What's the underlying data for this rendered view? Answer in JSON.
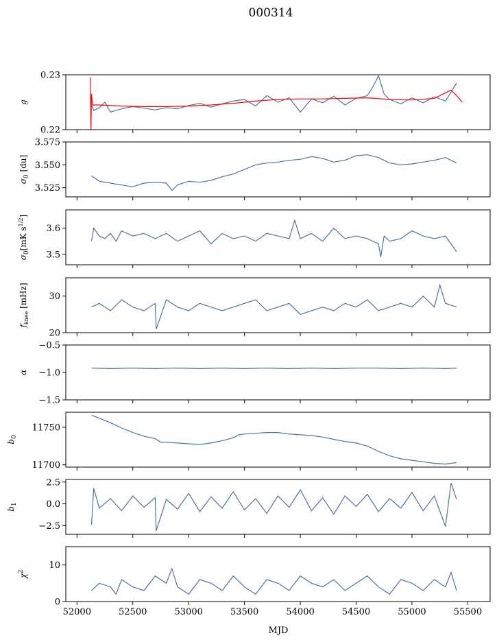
{
  "title": "000314",
  "colors": {
    "series": "#4c72a0",
    "overlay": "#ff0000",
    "axes": "#000000"
  },
  "chart_data": {
    "type": "line",
    "shared_x": {
      "label": "MJD",
      "lim": [
        51900,
        55700
      ],
      "ticks": [
        52000,
        52500,
        53000,
        53500,
        54000,
        54500,
        55000,
        55500
      ],
      "tick_labels": [
        "52000",
        "52500",
        "53000",
        "53500",
        "54000",
        "54500",
        "55000",
        "55500"
      ]
    },
    "panels": [
      {
        "ylabel": "g",
        "ylim": [
          0.22,
          0.23
        ],
        "yticks": [
          0.22,
          0.23
        ],
        "ytick_labels": [
          "0.22",
          "0.23"
        ],
        "series": [
          {
            "color": "#4c72a0",
            "x": [
              52130,
              52150,
              52200,
              52250,
              52300,
              52400,
              52500,
              52600,
              52700,
              52800,
              52900,
              53000,
              53100,
              53200,
              53300,
              53400,
              53500,
              53600,
              53700,
              53800,
              53900,
              54000,
              54100,
              54200,
              54300,
              54400,
              54500,
              54600,
              54650,
              54700,
              54750,
              54800,
              54900,
              55000,
              55100,
              55200,
              55300,
              55400
            ],
            "y": [
              0.2245,
              0.2235,
              0.224,
              0.225,
              0.2232,
              0.2238,
              0.2242,
              0.2239,
              0.2236,
              0.224,
              0.2238,
              0.2244,
              0.2248,
              0.2241,
              0.2247,
              0.2252,
              0.2255,
              0.2243,
              0.2262,
              0.225,
              0.2258,
              0.2232,
              0.2256,
              0.2249,
              0.2261,
              0.2245,
              0.2257,
              0.2262,
              0.2278,
              0.2298,
              0.2265,
              0.2255,
              0.2247,
              0.2258,
              0.2249,
              0.226,
              0.2252,
              0.2285
            ]
          },
          {
            "color": "#ff0000",
            "x": [
              52120,
              52125,
              52130,
              52140,
              52200,
              52400,
              52600,
              52800,
              53000,
              53200,
              53400,
              53600,
              53800,
              54000,
              54200,
              54400,
              54600,
              54800,
              55000,
              55200,
              55350,
              55400,
              55450
            ],
            "y": [
              0.2295,
              0.22,
              0.2265,
              0.2245,
              0.2245,
              0.2243,
              0.2242,
              0.2242,
              0.2243,
              0.2245,
              0.2248,
              0.2252,
              0.2255,
              0.2256,
              0.2256,
              0.2257,
              0.2258,
              0.2255,
              0.2254,
              0.2257,
              0.2272,
              0.2262,
              0.225
            ]
          }
        ]
      },
      {
        "ylabel": "σ0 [du]",
        "ylim": [
          3.515,
          3.575
        ],
        "yticks": [
          3.525,
          3.55,
          3.575
        ],
        "ytick_labels": [
          "3.525",
          "3.550",
          "3.575"
        ],
        "series": [
          {
            "color": "#4c72a0",
            "x": [
              52130,
              52200,
              52300,
              52400,
              52500,
              52600,
              52700,
              52800,
              52850,
              52900,
              53000,
              53100,
              53200,
              53300,
              53400,
              53500,
              53600,
              53700,
              53800,
              53900,
              54000,
              54100,
              54200,
              54300,
              54400,
              54500,
              54600,
              54700,
              54800,
              54900,
              55000,
              55100,
              55200,
              55300,
              55400
            ],
            "y": [
              3.538,
              3.532,
              3.53,
              3.528,
              3.526,
              3.53,
              3.531,
              3.53,
              3.522,
              3.528,
              3.532,
              3.531,
              3.533,
              3.537,
              3.54,
              3.545,
              3.55,
              3.552,
              3.553,
              3.555,
              3.556,
              3.559,
              3.557,
              3.553,
              3.555,
              3.56,
              3.561,
              3.558,
              3.552,
              3.55,
              3.551,
              3.553,
              3.555,
              3.558,
              3.552
            ]
          }
        ]
      },
      {
        "ylabel": "σ0[mK s^1/2]",
        "ylim": [
          3.46,
          3.67
        ],
        "yticks": [
          3.5,
          3.6
        ],
        "ytick_labels": [
          "3.5",
          "3.6"
        ],
        "series": [
          {
            "color": "#4c72a0",
            "x": [
              52130,
              52150,
              52200,
              52250,
              52300,
              52350,
              52400,
              52500,
              52600,
              52700,
              52800,
              52900,
              53000,
              53100,
              53200,
              53300,
              53400,
              53500,
              53600,
              53700,
              53800,
              53900,
              53950,
              54000,
              54100,
              54200,
              54300,
              54400,
              54500,
              54600,
              54700,
              54720,
              54750,
              54800,
              54900,
              55000,
              55100,
              55200,
              55300,
              55400
            ],
            "y": [
              3.55,
              3.6,
              3.57,
              3.56,
              3.58,
              3.55,
              3.59,
              3.57,
              3.58,
              3.56,
              3.58,
              3.55,
              3.57,
              3.59,
              3.54,
              3.58,
              3.56,
              3.57,
              3.55,
              3.58,
              3.57,
              3.56,
              3.63,
              3.56,
              3.58,
              3.55,
              3.6,
              3.56,
              3.57,
              3.56,
              3.54,
              3.49,
              3.57,
              3.55,
              3.56,
              3.59,
              3.57,
              3.56,
              3.57,
              3.51
            ]
          }
        ]
      },
      {
        "ylabel": "f_knee [mHz]",
        "ylim": [
          20,
          35
        ],
        "yticks": [
          20,
          30
        ],
        "ytick_labels": [
          "20",
          "30"
        ],
        "series": [
          {
            "color": "#4c72a0",
            "x": [
              52130,
              52200,
              52300,
              52400,
              52500,
              52600,
              52700,
              52710,
              52800,
              52900,
              53000,
              53100,
              53200,
              53300,
              53400,
              53500,
              53600,
              53700,
              53800,
              53900,
              54000,
              54100,
              54200,
              54300,
              54400,
              54500,
              54600,
              54700,
              54800,
              54900,
              55000,
              55100,
              55200,
              55250,
              55300,
              55400
            ],
            "y": [
              27,
              28,
              26,
              29,
              27,
              26,
              28,
              21,
              29,
              27,
              26,
              28,
              27,
              26,
              27,
              28,
              29,
              26,
              27,
              28,
              25,
              26,
              27,
              26,
              28,
              27,
              29,
              26,
              27,
              28,
              27,
              30,
              27,
              33,
              28,
              27
            ]
          }
        ]
      },
      {
        "ylabel": "α",
        "ylim": [
          -1.5,
          -0.5
        ],
        "yticks": [
          -1.5,
          -1.0,
          -0.5
        ],
        "ytick_labels": [
          "−1.5",
          "−1.0",
          "−0.5"
        ],
        "series": [
          {
            "color": "#4c72a0",
            "x": [
              52130,
              52300,
              52500,
              52700,
              52900,
              53100,
              53300,
              53500,
              53700,
              53900,
              54100,
              54300,
              54500,
              54700,
              54900,
              55100,
              55300,
              55400
            ],
            "y": [
              -0.92,
              -0.93,
              -0.92,
              -0.93,
              -0.92,
              -0.93,
              -0.92,
              -0.93,
              -0.92,
              -0.93,
              -0.92,
              -0.93,
              -0.92,
              -0.92,
              -0.93,
              -0.92,
              -0.93,
              -0.92
            ]
          }
        ]
      },
      {
        "ylabel": "b0",
        "ylim": [
          11697,
          11770
        ],
        "yticks": [
          11700,
          11750
        ],
        "ytick_labels": [
          "11700",
          "11750"
        ],
        "series": [
          {
            "color": "#4c72a0",
            "x": [
              52130,
              52200,
              52300,
              52400,
              52500,
              52600,
              52700,
              52750,
              52800,
              52900,
              53000,
              53100,
              53200,
              53300,
              53400,
              53450,
              53500,
              53600,
              53700,
              53800,
              53900,
              54000,
              54100,
              54200,
              54300,
              54400,
              54500,
              54600,
              54700,
              54800,
              54900,
              55000,
              55100,
              55200,
              55300,
              55400
            ],
            "y": [
              11766,
              11762,
              11756,
              11749,
              11743,
              11738,
              11735,
              11730,
              11730,
              11729,
              11728,
              11727,
              11729,
              11732,
              11736,
              11740,
              11741,
              11742,
              11743,
              11743,
              11741,
              11740,
              11739,
              11737,
              11734,
              11731,
              11729,
              11725,
              11718,
              11712,
              11708,
              11706,
              11704,
              11702,
              11701,
              11703
            ]
          }
        ]
      },
      {
        "ylabel": "b1",
        "ylim": [
          -3.5,
          2.8
        ],
        "yticks": [
          -2.5,
          0.0,
          2.5
        ],
        "ytick_labels": [
          "−2.5",
          "0.0",
          "2.5"
        ],
        "series": [
          {
            "color": "#4c72a0",
            "x": [
              52130,
              52150,
              52200,
              52300,
              52400,
              52500,
              52600,
              52700,
              52710,
              52800,
              52900,
              53000,
              53100,
              53200,
              53300,
              53400,
              53500,
              53600,
              53700,
              53800,
              53900,
              54000,
              54100,
              54200,
              54300,
              54400,
              54500,
              54600,
              54700,
              54800,
              54900,
              55000,
              55100,
              55200,
              55300,
              55350,
              55400
            ],
            "y": [
              -2.4,
              1.8,
              -0.5,
              0.6,
              -0.8,
              0.9,
              -0.4,
              0.7,
              -3.1,
              0.5,
              -0.6,
              1.2,
              -0.9,
              0.8,
              -0.5,
              1.4,
              -0.7,
              0.6,
              -1.1,
              0.9,
              -0.4,
              1.6,
              -0.8,
              0.7,
              -1.2,
              0.9,
              -0.3,
              1.1,
              -0.9,
              0.6,
              -0.5,
              1.3,
              -0.8,
              0.9,
              -2.6,
              2.4,
              0.5
            ]
          }
        ]
      },
      {
        "ylabel": "χ2",
        "ylim": [
          0,
          15
        ],
        "yticks": [
          0,
          10
        ],
        "ytick_labels": [
          "0",
          "10"
        ],
        "series": [
          {
            "color": "#4c72a0",
            "x": [
              52130,
              52200,
              52300,
              52350,
              52400,
              52500,
              52600,
              52700,
              52800,
              52850,
              52900,
              53000,
              53100,
              53200,
              53300,
              53400,
              53500,
              53600,
              53700,
              53800,
              53900,
              54000,
              54100,
              54200,
              54300,
              54400,
              54500,
              54600,
              54700,
              54800,
              54900,
              55000,
              55100,
              55200,
              55300,
              55350,
              55400
            ],
            "y": [
              3,
              5,
              4,
              2,
              6,
              4,
              3,
              7,
              5,
              9,
              4,
              2,
              6,
              5,
              3,
              7,
              4,
              2,
              6,
              5,
              3,
              7,
              5,
              4,
              6,
              3,
              5,
              7,
              4,
              2,
              6,
              5,
              3,
              6,
              4,
              8,
              3
            ]
          }
        ]
      }
    ]
  }
}
